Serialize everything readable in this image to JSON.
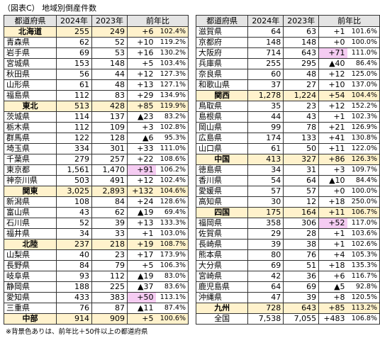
{
  "title": "（図表C） 地域別倒産件数",
  "note": "※背景色ありは、前年比＋50件以上の都道府県",
  "header": [
    "都道府県",
    "2024年",
    "2023年",
    "前年比"
  ],
  "left": {
    "rows": [
      {
        "cells": [
          "北海道",
          "255",
          "249",
          "+6",
          "102.4%"
        ],
        "region": true
      },
      {
        "cells": [
          "青森県",
          "62",
          "52",
          "+10",
          "119.2%"
        ]
      },
      {
        "cells": [
          "岩手県",
          "69",
          "53",
          "+16",
          "130.2%"
        ]
      },
      {
        "cells": [
          "宮城県",
          "153",
          "148",
          "+5",
          "103.4%"
        ]
      },
      {
        "cells": [
          "秋田県",
          "56",
          "44",
          "+12",
          "127.3%"
        ]
      },
      {
        "cells": [
          "山形県",
          "61",
          "48",
          "+13",
          "127.1%"
        ]
      },
      {
        "cells": [
          "福島県",
          "112",
          "83",
          "+29",
          "134.9%"
        ]
      },
      {
        "cells": [
          "東北",
          "513",
          "428",
          "+85",
          "119.9%"
        ],
        "region": true
      },
      {
        "cells": [
          "茨城県",
          "114",
          "137",
          "▲23",
          "83.2%"
        ]
      },
      {
        "cells": [
          "栃木県",
          "112",
          "109",
          "+3",
          "102.8%"
        ]
      },
      {
        "cells": [
          "群馬県",
          "122",
          "128",
          "▲6",
          "95.3%"
        ]
      },
      {
        "cells": [
          "埼玉県",
          "334",
          "301",
          "+33",
          "111.0%"
        ]
      },
      {
        "cells": [
          "千葉県",
          "279",
          "257",
          "+22",
          "108.6%"
        ]
      },
      {
        "cells": [
          "東京都",
          "1,561",
          "1,470",
          "+91",
          "106.2%"
        ],
        "highlight": true
      },
      {
        "cells": [
          "神奈川県",
          "503",
          "491",
          "+12",
          "102.4%"
        ]
      },
      {
        "cells": [
          "関東",
          "3,025",
          "2,893",
          "+132",
          "104.6%"
        ],
        "region": true
      },
      {
        "cells": [
          "新潟県",
          "108",
          "84",
          "+24",
          "128.6%"
        ]
      },
      {
        "cells": [
          "富山県",
          "43",
          "62",
          "▲19",
          "69.4%"
        ]
      },
      {
        "cells": [
          "石川県",
          "52",
          "39",
          "+13",
          "133.3%"
        ]
      },
      {
        "cells": [
          "福井県",
          "34",
          "33",
          "+1",
          "103.0%"
        ]
      },
      {
        "cells": [
          "北陸",
          "237",
          "218",
          "+19",
          "108.7%"
        ],
        "region": true
      },
      {
        "cells": [
          "山梨県",
          "40",
          "23",
          "+17",
          "173.9%"
        ]
      },
      {
        "cells": [
          "長野県",
          "84",
          "79",
          "+5",
          "106.3%"
        ]
      },
      {
        "cells": [
          "岐阜県",
          "93",
          "112",
          "▲19",
          "83.0%"
        ]
      },
      {
        "cells": [
          "静岡県",
          "188",
          "225",
          "▲37",
          "83.6%"
        ]
      },
      {
        "cells": [
          "愛知県",
          "433",
          "383",
          "+50",
          "113.1%"
        ],
        "highlight": true
      },
      {
        "cells": [
          "三重県",
          "76",
          "87",
          "▲11",
          "87.4%"
        ]
      },
      {
        "cells": [
          "中部",
          "914",
          "909",
          "+5",
          "100.6%"
        ],
        "region": true
      }
    ]
  },
  "right": {
    "rows": [
      {
        "cells": [
          "滋賀県",
          "64",
          "63",
          "+1",
          "101.6%"
        ]
      },
      {
        "cells": [
          "京都府",
          "148",
          "148",
          "+0",
          "100.0%"
        ]
      },
      {
        "cells": [
          "大阪府",
          "714",
          "643",
          "+71",
          "111.0%"
        ],
        "highlight": true
      },
      {
        "cells": [
          "兵庫県",
          "255",
          "295",
          "▲40",
          "86.4%"
        ]
      },
      {
        "cells": [
          "奈良県",
          "60",
          "48",
          "+12",
          "125.0%"
        ]
      },
      {
        "cells": [
          "和歌山県",
          "37",
          "27",
          "+10",
          "137.0%"
        ]
      },
      {
        "cells": [
          "関西",
          "1,278",
          "1,224",
          "+54",
          "104.4%"
        ],
        "region": true
      },
      {
        "cells": [
          "鳥取県",
          "35",
          "23",
          "+12",
          "152.2%"
        ]
      },
      {
        "cells": [
          "島根県",
          "44",
          "43",
          "+1",
          "102.3%"
        ]
      },
      {
        "cells": [
          "岡山県",
          "99",
          "78",
          "+21",
          "126.9%"
        ]
      },
      {
        "cells": [
          "広島県",
          "174",
          "133",
          "+41",
          "130.8%"
        ]
      },
      {
        "cells": [
          "山口県",
          "61",
          "50",
          "+11",
          "122.0%"
        ]
      },
      {
        "cells": [
          "中国",
          "413",
          "327",
          "+86",
          "126.3%"
        ],
        "region": true
      },
      {
        "cells": [
          "徳島県",
          "34",
          "31",
          "+3",
          "109.7%"
        ]
      },
      {
        "cells": [
          "香川県",
          "54",
          "64",
          "▲10",
          "84.4%"
        ]
      },
      {
        "cells": [
          "愛媛県",
          "57",
          "57",
          "+0",
          "100.0%"
        ]
      },
      {
        "cells": [
          "高知県",
          "30",
          "12",
          "+18",
          "250.0%"
        ]
      },
      {
        "cells": [
          "四国",
          "175",
          "164",
          "+11",
          "106.7%"
        ],
        "region": true
      },
      {
        "cells": [
          "福岡県",
          "358",
          "306",
          "+52",
          "117.0%"
        ],
        "highlight": true
      },
      {
        "cells": [
          "佐賀県",
          "29",
          "28",
          "+1",
          "103.6%"
        ]
      },
      {
        "cells": [
          "長崎県",
          "39",
          "38",
          "+1",
          "102.6%"
        ]
      },
      {
        "cells": [
          "熊本県",
          "80",
          "76",
          "+4",
          "105.3%"
        ]
      },
      {
        "cells": [
          "大分県",
          "69",
          "51",
          "+18",
          "135.3%"
        ]
      },
      {
        "cells": [
          "宮崎県",
          "42",
          "36",
          "+6",
          "116.7%"
        ]
      },
      {
        "cells": [
          "鹿児島県",
          "64",
          "69",
          "▲5",
          "92.8%"
        ]
      },
      {
        "cells": [
          "沖縄県",
          "47",
          "39",
          "+8",
          "120.5%"
        ]
      },
      {
        "cells": [
          "九州",
          "728",
          "643",
          "+85",
          "113.2%"
        ],
        "region": true
      },
      {
        "cells": [
          "全国",
          "7,538",
          "7,055",
          "+483",
          "106.8%"
        ],
        "total": true
      }
    ]
  }
}
